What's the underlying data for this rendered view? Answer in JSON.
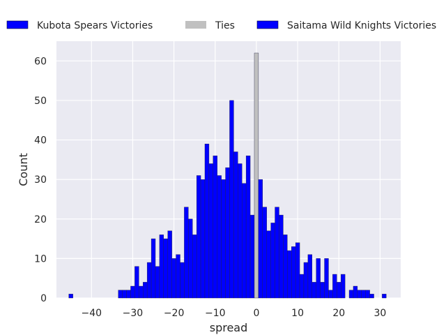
{
  "chart_data": {
    "type": "bar",
    "xlabel": "spread",
    "ylabel": "Count",
    "xlim": [
      -48.5,
      35
    ],
    "ylim": [
      0,
      65
    ],
    "x_ticks": [
      -40,
      -30,
      -20,
      -10,
      0,
      10,
      20,
      30
    ],
    "x_tick_labels": [
      "−40",
      "−30",
      "−20",
      "−10",
      "0",
      "10",
      "20",
      "30"
    ],
    "y_ticks": [
      0,
      10,
      20,
      30,
      40,
      50,
      60
    ],
    "y_tick_labels": [
      "0",
      "10",
      "20",
      "30",
      "40",
      "50",
      "60"
    ],
    "grid": true,
    "legend_placement": "top (outside plot, single row)",
    "legend": [
      {
        "name": "Kubota Spears Victories",
        "color": "#0000ff"
      },
      {
        "name": "Ties",
        "color": "#c0c0c0"
      },
      {
        "name": "Saitama Wild Knights Victories",
        "color": "#0000ff"
      }
    ],
    "series": [
      {
        "name": "Kubota Spears Victories",
        "color": "#0000ff",
        "x": [
          -45,
          -33,
          -32,
          -31,
          -30,
          -29,
          -28,
          -27,
          -26,
          -25,
          -24,
          -23,
          -22,
          -21,
          -20,
          -19,
          -18,
          -17,
          -16,
          -15,
          -14,
          -13,
          -12,
          -11,
          -10,
          -9,
          -8,
          -7,
          -6,
          -5,
          -4,
          -3,
          -2,
          -1
        ],
        "values": [
          1,
          2,
          2,
          2,
          3,
          8,
          3,
          4,
          9,
          15,
          8,
          16,
          15,
          17,
          10,
          11,
          9,
          23,
          20,
          16,
          31,
          30,
          39,
          34,
          36,
          31,
          30,
          33,
          50,
          37,
          34,
          29,
          36,
          21
        ]
      },
      {
        "name": "Ties",
        "color": "#c0c0c0",
        "x": [
          0
        ],
        "values": [
          62
        ]
      },
      {
        "name": "Saitama Wild Knights Victories",
        "color": "#0000ff",
        "x": [
          1,
          2,
          3,
          4,
          5,
          6,
          7,
          8,
          9,
          10,
          11,
          12,
          13,
          14,
          15,
          16,
          17,
          18,
          19,
          20,
          21,
          23,
          24,
          25,
          26,
          27,
          28,
          31
        ],
        "values": [
          30,
          23,
          17,
          19,
          23,
          21,
          16,
          12,
          13,
          14,
          6,
          9,
          11,
          4,
          10,
          4,
          10,
          2,
          6,
          4,
          6,
          2,
          3,
          2,
          2,
          2,
          1,
          1
        ]
      }
    ]
  }
}
